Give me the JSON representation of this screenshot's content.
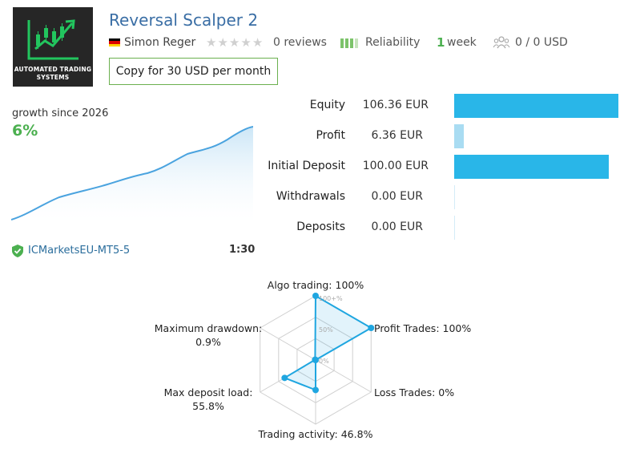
{
  "header": {
    "logo_text_line1": "AUTOMATED TRADING",
    "logo_text_line2": "SYSTEMS",
    "title": "Reversal Scalper 2",
    "author": "Simon Reger",
    "author_flag": "germany",
    "reviews_count": "0 reviews",
    "rating_stars": 0,
    "reliability_label": "Reliability",
    "age_number": "1",
    "age_unit": "week",
    "subscribers": "0 / 0 USD",
    "copy_button": "Copy for 30 USD per month"
  },
  "growth": {
    "label": "growth since 2026",
    "value": "6%",
    "broker": "ICMarketsEU-MT5-5",
    "leverage": "1:30",
    "curve_color": "#4aa3df"
  },
  "stats": [
    {
      "label": "Equity",
      "value": "106.36 EUR",
      "amount": 106.36
    },
    {
      "label": "Profit",
      "value": "6.36 EUR",
      "amount": 6.36
    },
    {
      "label": "Initial Deposit",
      "value": "100.00 EUR",
      "amount": 100.0
    },
    {
      "label": "Withdrawals",
      "value": "0.00 EUR",
      "amount": 0
    },
    {
      "label": "Deposits",
      "value": "0.00 EUR",
      "amount": 0
    }
  ],
  "stat_colors": {
    "primary": "#29b6e8",
    "light": "#a9dcf2",
    "empty": "#d4ecf7"
  },
  "radar": {
    "algo_trading": "Algo trading: 100%",
    "profit_trades": "Profit Trades: 100%",
    "loss_trades": "Loss Trades: 0%",
    "trading_activity": "Trading activity: 46.8%",
    "max_deposit_load_label": "Max deposit load:",
    "max_deposit_load_value": "55.8%",
    "max_drawdown_label": "Maximum drawdown:",
    "max_drawdown_value": "0.9%",
    "scale_100": "100+%",
    "scale_50": "50%",
    "scale_0": "0%",
    "values": [
      100,
      100,
      0,
      46.8,
      55.8,
      0.9
    ],
    "accent": "#1fa6e0"
  }
}
